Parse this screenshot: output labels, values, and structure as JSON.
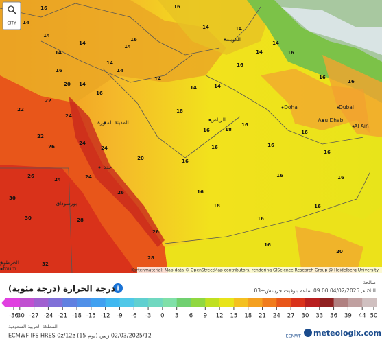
{
  "zoom": {
    "city": "CITY"
  },
  "map": {
    "attribution": "Kartenmaterial: Map data © OpenStreetMap contributors, rendering GIScience Research Group @ Heidelberg University",
    "cities": [
      "الكويت",
      "Doha",
      "Dubai",
      "Abu Dhabi",
      "Al Ain",
      "الرياض",
      "جدة",
      "المدينة المنورة",
      "بورسودان",
      "الخرطوم",
      "toum"
    ],
    "labels": [
      "14",
      "16",
      "14",
      "14",
      "14",
      "16",
      "14",
      "14",
      "14",
      "16",
      "14",
      "20",
      "16",
      "14",
      "14",
      "14",
      "14",
      "16",
      "14",
      "14",
      "14",
      "16",
      "14",
      "16",
      "16",
      "16",
      "18",
      "18",
      "16",
      "16",
      "16",
      "16",
      "16",
      "16",
      "16",
      "16",
      "16",
      "16",
      "16",
      "16",
      "18",
      "16",
      "20",
      "22",
      "22",
      "24",
      "24",
      "24",
      "26",
      "22",
      "20",
      "24",
      "24",
      "26",
      "30",
      "30",
      "28",
      "26",
      "26",
      "28",
      "32"
    ]
  },
  "legend": {
    "title": "درجة الحرارة (درجة مئوية)",
    "ticks": [
      -36,
      -30,
      -27,
      -24,
      -21,
      -18,
      -15,
      -12,
      -9,
      -6,
      -3,
      0,
      3,
      6,
      9,
      12,
      15,
      18,
      21,
      24,
      27,
      30,
      33,
      36,
      39,
      44,
      50
    ]
  },
  "header": {
    "valid_label": "صالحة",
    "valid_time": "الثلاثاء, 04/02/2025 09:00 ساعة بتوقيت جرينتش+03"
  },
  "footer": {
    "region": "المملكة العربية السعودية",
    "model": "ECMWF IFS HRES 0z/12z (يوم 15) 02/03/2025/12 زمن",
    "ecmwf": "ECMWF",
    "brand": "meteologix.com"
  }
}
